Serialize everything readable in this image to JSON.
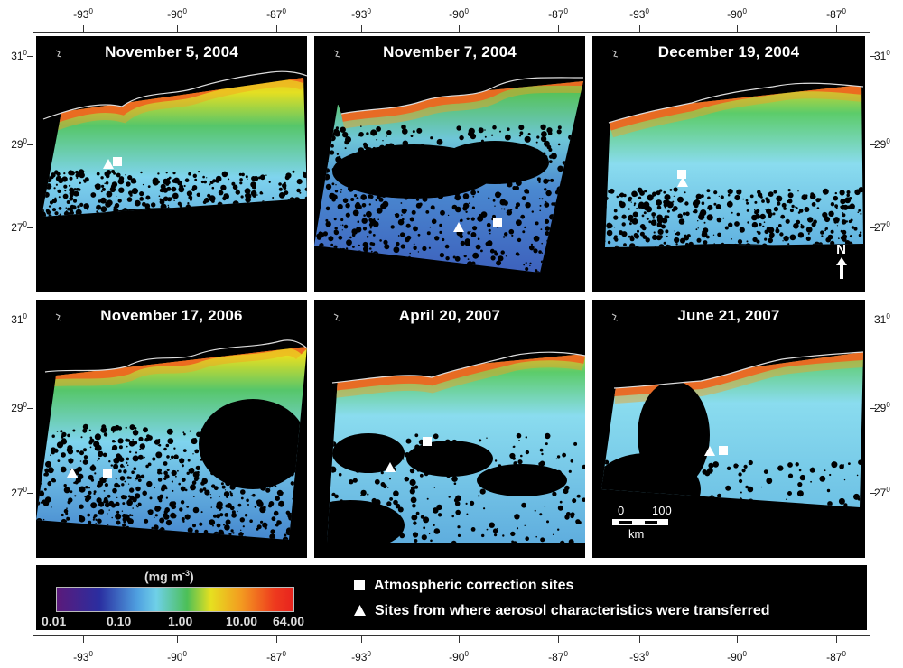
{
  "panels": [
    {
      "title": "November 5, 2004"
    },
    {
      "title": "November 7, 2004"
    },
    {
      "title": "December 19, 2004"
    },
    {
      "title": "November 17, 2006"
    },
    {
      "title": "April 20, 2007"
    },
    {
      "title": "June 21, 2007"
    }
  ],
  "lon_ticks": [
    "-93",
    "-90",
    "-87"
  ],
  "lat_ticks_top": [
    "31",
    "29",
    "27"
  ],
  "lat_ticks_bottom": [
    "31",
    "29",
    "27"
  ],
  "degree_symbol": "0",
  "north_label": "N",
  "scale": {
    "zero": "0",
    "hundred": "100",
    "unit": "km"
  },
  "legend": {
    "unit": "(mg m",
    "unit_sup": "-3",
    "unit_close": ")",
    "labels": [
      "0.01",
      "0.10",
      "1.00",
      "10.00",
      "64.00"
    ],
    "square_label": "Atmospheric correction sites",
    "triangle_label": "Sites from where aerosol characteristics were transferred"
  }
}
